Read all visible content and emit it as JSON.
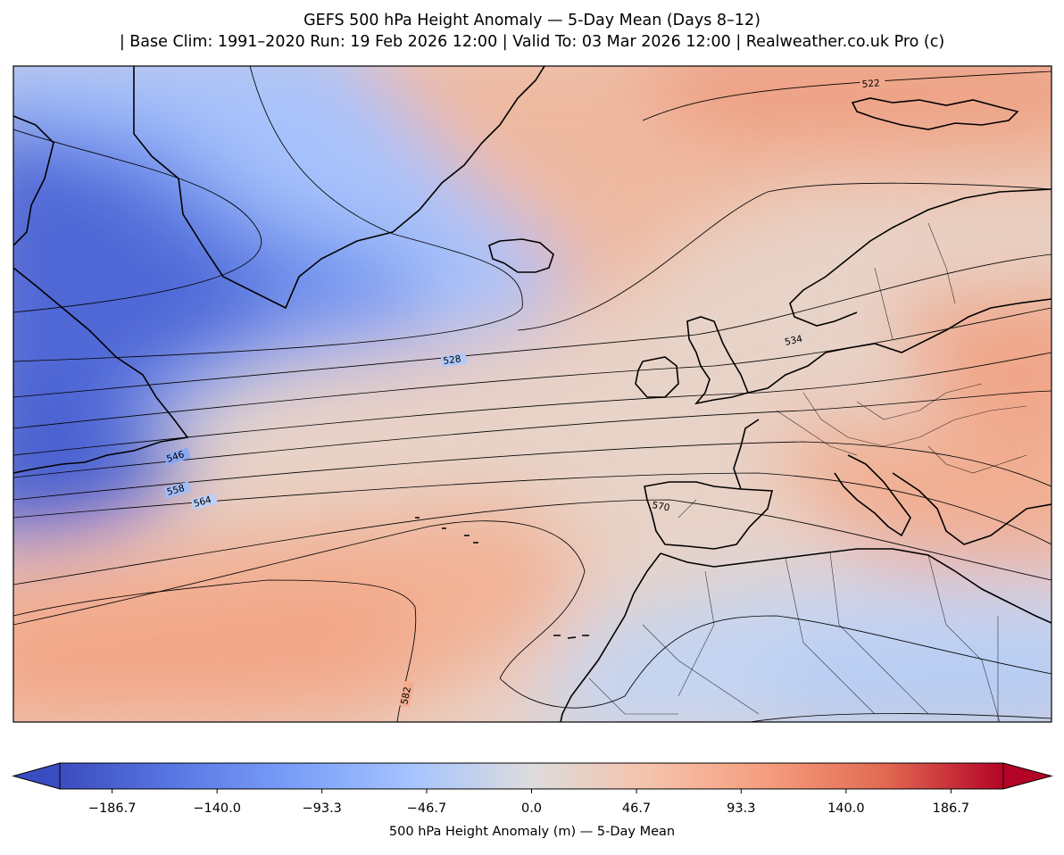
{
  "title": {
    "line1": "GEFS 500 hPa Height Anomaly — 5-Day Mean (Days 8–12)",
    "line2": "| Base Clim: 1991–2020 Run: 19 Feb 2026 12:00 | Valid To: 03 Mar 2026 12:00 | Realweather.co.uk Pro (c)"
  },
  "colorbar": {
    "label": "500 hPa Height Anomaly (m) — 5-Day Mean",
    "min": -210,
    "max": 210,
    "extend": "both",
    "colormap": "coolwarm",
    "ticks": [
      "−186.7",
      "−140.0",
      "−93.3",
      "−46.7",
      "0.0",
      "46.7",
      "93.3",
      "140.0",
      "186.7"
    ],
    "tick_values": [
      -186.7,
      -140.0,
      -93.3,
      -46.7,
      0.0,
      46.7,
      93.3,
      140.0,
      186.7
    ]
  },
  "contours": {
    "units": "dam",
    "labels": [
      "522",
      "528",
      "534",
      "546",
      "558",
      "564",
      "570",
      "582"
    ]
  },
  "colors": {
    "strong_negative": "#3b4cc0",
    "neutral": "#dddcdc",
    "strong_positive": "#b40426"
  }
}
